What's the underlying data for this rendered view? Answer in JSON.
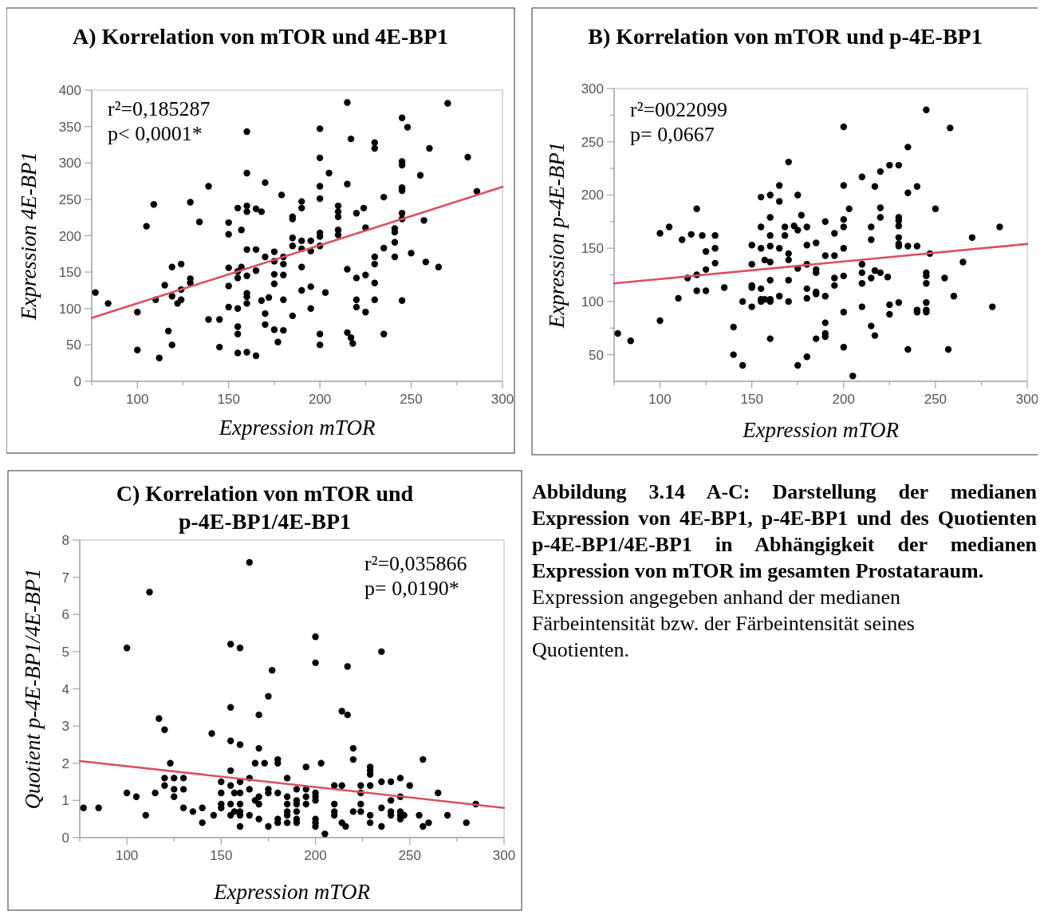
{
  "chart_data": [
    {
      "type": "scatter",
      "title": "A) Korrelation von mTOR und 4E-BP1",
      "xlabel": "Expression mTOR",
      "ylabel": "Expression 4E-BP1",
      "xlim": [
        75,
        300
      ],
      "xticks": [
        {
          "value": 75,
          "label": null
        },
        100,
        {
          "value": 125,
          "label": null
        },
        150,
        {
          "value": 175,
          "label": null
        },
        200,
        {
          "value": 225,
          "label": null
        },
        250,
        {
          "value": 275,
          "label": null
        },
        300
      ],
      "ylim": [
        0,
        400
      ],
      "yticks": [
        0,
        50,
        100,
        150,
        200,
        250,
        300,
        350,
        400
      ],
      "annotations": [
        "r²=0,185287",
        "p< 0,0001*"
      ],
      "series": [
        {
          "type": "scatter",
          "marker": "circle",
          "color": "#000000",
          "x": [
            77,
            84,
            100,
            100,
            105,
            109,
            110,
            112,
            115,
            117,
            119,
            119,
            119,
            122,
            124,
            124,
            124,
            129,
            129,
            129,
            134,
            139,
            139,
            145,
            145,
            150,
            150,
            150,
            150,
            150,
            155,
            155,
            155,
            157,
            155,
            155,
            155,
            155,
            157,
            160,
            160,
            160,
            160,
            160,
            160,
            160,
            160,
            160,
            160,
            165,
            165,
            165,
            168,
            168,
            170,
            170,
            170,
            170,
            165,
            172,
            175,
            175,
            175,
            175,
            175,
            177,
            179,
            190,
            190,
            185,
            185,
            185,
            185,
            190,
            190,
            195,
            195,
            200,
            200,
            200,
            200,
            200,
            200,
            200,
            205,
            210,
            210,
            210,
            210,
            210,
            215,
            217,
            215,
            220,
            224,
            225,
            230,
            230,
            235,
            241,
            241,
            241,
            235,
            245,
            248,
            245,
            245,
            245,
            245,
            245,
            245,
            260,
            255,
            257,
            270,
            281,
            286,
            250,
            258,
            265,
            241,
            230,
            230,
            230,
            230,
            225,
            220,
            215,
            220,
            220,
            225,
            235,
            215,
            217,
            218,
            245,
            203,
            200,
            200,
            195,
            195,
            190,
            190,
            185,
            180,
            180,
            180,
            180,
            180
          ],
          "values": [
            122,
            107,
            95,
            43,
            213,
            243,
            112,
            32,
            132,
            69,
            157,
            117,
            50,
            107,
            161,
            126,
            112,
            246,
            141,
            135,
            219,
            268,
            85,
            85,
            47,
            218,
            202,
            156,
            131,
            102,
            238,
            142,
            151,
            157,
            100,
            75,
            65,
            39,
            208,
            343,
            286,
            241,
            233,
            181,
            145,
            121,
            116,
            107,
            40,
            181,
            152,
            237,
            233,
            111,
            273,
            171,
            93,
            78,
            35,
            115,
            178,
            165,
            147,
            134,
            71,
            54,
            256,
            247,
            238,
            226,
            223,
            197,
            186,
            193,
            182,
            193,
            179,
            347,
            307,
            268,
            251,
            204,
            199,
            186,
            286,
            241,
            233,
            226,
            208,
            201,
            383,
            333,
            271,
            231,
            238,
            211,
            328,
            320,
            253,
            210,
            205,
            191,
            183,
            362,
            349,
            302,
            297,
            266,
            262,
            231,
            223,
            320,
            283,
            221,
            382,
            308,
            261,
            176,
            164,
            157,
            171,
            171,
            161,
            135,
            112,
            146,
            142,
            154,
            112,
            102,
            95,
            65,
            67,
            60,
            52,
            111,
            122,
            65,
            50,
            130,
            100,
            157,
            125,
            90,
            171,
            161,
            146,
            112,
            70
          ]
        },
        {
          "type": "line",
          "color": "#d9515f",
          "x": [
            75,
            300
          ],
          "values": [
            87,
            267
          ]
        }
      ]
    },
    {
      "type": "scatter",
      "title": "B) Korrelation von mTOR und p-4E-BP1",
      "xlabel": "Expression mTOR",
      "ylabel": "Expression p-4E-BP1",
      "xlim": [
        75,
        300
      ],
      "xticks": [
        {
          "value": 75,
          "label": null
        },
        100,
        {
          "value": 125,
          "label": null
        },
        150,
        {
          "value": 175,
          "label": null
        },
        200,
        {
          "value": 225,
          "label": null
        },
        250,
        {
          "value": 275,
          "label": null
        },
        300
      ],
      "ylim": [
        25,
        300
      ],
      "yticks": [
        50,
        {
          "value": 75,
          "label": null
        },
        100,
        {
          "value": 125,
          "label": null
        },
        150,
        {
          "value": 175,
          "label": null
        },
        200,
        {
          "value": 225,
          "label": null
        },
        250,
        {
          "value": 275,
          "label": null
        },
        300
      ],
      "annotations": [
        "r²=0022099",
        "p= 0,0667"
      ],
      "series": [
        {
          "type": "scatter",
          "marker": "circle",
          "color": "#000000",
          "x": [
            77,
            84,
            100,
            100,
            105,
            110,
            112,
            115,
            117,
            120,
            120,
            120,
            125,
            125,
            125,
            123,
            130,
            130,
            130,
            135,
            140,
            140,
            145,
            145,
            150,
            150,
            150,
            150,
            150,
            155,
            155,
            155,
            155,
            155,
            155,
            157,
            160,
            160,
            160,
            160,
            160,
            160,
            160,
            160,
            160,
            157,
            165,
            165,
            165,
            165,
            168,
            168,
            170,
            170,
            170,
            170,
            170,
            173,
            175,
            175,
            175,
            175,
            177,
            180,
            180,
            185,
            180,
            185,
            185,
            190,
            190,
            195,
            195,
            200,
            200,
            200,
            200,
            200,
            203,
            200,
            195,
            195,
            180,
            180,
            185,
            185,
            190,
            190,
            190,
            190,
            185,
            180,
            200,
            200,
            205,
            210,
            210,
            210,
            210,
            210,
            215,
            215,
            215,
            217,
            217,
            220,
            220,
            220,
            220,
            215,
            217,
            225,
            224,
            225,
            225,
            230,
            230,
            230,
            230,
            230,
            230,
            230,
            230,
            235,
            235,
            235,
            235,
            240,
            240,
            240,
            240,
            245,
            245,
            245,
            245,
            245,
            245,
            245,
            247,
            250,
            255,
            258,
            257,
            260,
            265,
            270,
            281,
            285
          ],
          "values": [
            70,
            63,
            164,
            82,
            170,
            103,
            158,
            122,
            163,
            187,
            125,
            110,
            130,
            147,
            110,
            162,
            162,
            150,
            136,
            113,
            76,
            50,
            40,
            100,
            153,
            135,
            115,
            113,
            95,
            198,
            170,
            150,
            112,
            102,
            100,
            139,
            200,
            179,
            162,
            152,
            137,
            120,
            102,
            100,
            65,
            102,
            209,
            194,
            150,
            105,
            170,
            162,
            231,
            145,
            139,
            120,
            100,
            171,
            200,
            167,
            131,
            40,
            181,
            170,
            153,
            155,
            135,
            130,
            127,
            175,
            143,
            164,
            143,
            264,
            209,
            177,
            170,
            150,
            187,
            124,
            122,
            115,
            112,
            103,
            109,
            107,
            105,
            80,
            70,
            67,
            65,
            48,
            90,
            57,
            30,
            217,
            135,
            127,
            117,
            95,
            170,
            158,
            122,
            208,
            129,
            127,
            222,
            188,
            179,
            77,
            68,
            228,
            123,
            97,
            88,
            228,
            179,
            176,
            171,
            160,
            154,
            152,
            99,
            245,
            202,
            152,
            55,
            208,
            152,
            92,
            90,
            280,
            127,
            124,
            117,
            99,
            92,
            90,
            145,
            187,
            122,
            263,
            55,
            105,
            137,
            160,
            95,
            170
          ]
        },
        {
          "type": "line",
          "color": "#d9515f",
          "x": [
            75,
            300
          ],
          "values": [
            117,
            154
          ]
        }
      ]
    },
    {
      "type": "scatter",
      "title": "C) Korrelation von mTOR und p-4E-BP1/4E-BP1",
      "xlabel": "Expression mTOR",
      "ylabel": "Quotient p-4E-BP1/4E-BP1",
      "xlim": [
        75,
        300
      ],
      "xticks": [
        {
          "value": 75,
          "label": null
        },
        100,
        {
          "value": 125,
          "label": null
        },
        150,
        {
          "value": 175,
          "label": null
        },
        200,
        {
          "value": 225,
          "label": null
        },
        250,
        {
          "value": 275,
          "label": null
        },
        300
      ],
      "ylim": [
        0,
        8
      ],
      "yticks": [
        0,
        1,
        2,
        3,
        4,
        5,
        6,
        7,
        8
      ],
      "annotations": [
        "r²=0,035866",
        "p= 0,0190*"
      ],
      "series": [
        {
          "type": "scatter",
          "marker": "circle",
          "color": "#000000",
          "x": [
            77,
            85,
            100,
            100,
            105,
            110,
            112,
            115,
            117,
            120,
            120,
            120,
            123,
            125,
            125,
            125,
            130,
            130,
            130,
            135,
            140,
            140,
            145,
            146,
            150,
            150,
            150,
            150,
            155,
            155,
            155,
            155,
            155,
            155,
            155,
            157,
            157,
            160,
            160,
            160,
            160,
            160,
            160,
            160,
            160,
            165,
            165,
            165,
            165,
            168,
            168,
            170,
            170,
            170,
            170,
            170,
            173,
            175,
            175,
            175,
            175,
            177,
            180,
            180,
            180,
            180,
            180,
            185,
            185,
            185,
            185,
            185,
            185,
            190,
            190,
            190,
            190,
            190,
            190,
            195,
            195,
            195,
            195,
            200,
            200,
            200,
            200,
            200,
            200,
            200,
            200,
            203,
            205,
            210,
            210,
            210,
            210,
            214,
            217,
            214,
            214,
            216,
            217,
            220,
            220,
            220,
            224,
            224,
            224,
            224,
            229,
            229,
            229,
            229,
            229,
            229,
            235,
            235,
            235,
            235,
            240,
            240,
            240,
            240,
            245,
            245,
            245,
            245,
            245,
            247,
            250,
            255,
            257,
            257,
            260,
            265,
            270,
            280,
            285
          ],
          "values": [
            0.8,
            0.8,
            5.1,
            1.2,
            1.1,
            0.6,
            6.6,
            1.2,
            3.2,
            2.9,
            1.6,
            1.4,
            2.0,
            1.6,
            1.3,
            1.1,
            1.6,
            1.3,
            0.8,
            0.7,
            0.8,
            0.4,
            2.8,
            0.6,
            1.5,
            1.2,
            0.9,
            0.8,
            5.2,
            3.5,
            2.6,
            1.8,
            1.4,
            0.9,
            0.6,
            1.2,
            0.7,
            5.1,
            2.5,
            1.5,
            1.2,
            0.9,
            0.7,
            0.6,
            0.3,
            7.4,
            1.6,
            1.3,
            0.6,
            2.0,
            1.0,
            3.3,
            2.4,
            1.1,
            0.9,
            0.5,
            2.0,
            3.8,
            1.3,
            1.2,
            0.3,
            4.5,
            2.1,
            2.0,
            1.2,
            0.5,
            0.4,
            1.6,
            1.1,
            0.9,
            0.7,
            0.4,
            0.6,
            1.3,
            1.0,
            0.9,
            0.7,
            0.5,
            0.4,
            1.9,
            1.3,
            1.1,
            0.9,
            5.4,
            4.7,
            1.2,
            1.1,
            1.0,
            0.5,
            0.4,
            0.3,
            2.0,
            0.1,
            1.4,
            0.9,
            0.7,
            0.6,
            3.4,
            3.3,
            1.4,
            0.4,
            0.3,
            4.6,
            2.4,
            2.1,
            0.7,
            1.4,
            1.2,
            0.9,
            0.7,
            1.9,
            1.8,
            1.7,
            1.4,
            0.6,
            0.4,
            5.0,
            1.5,
            0.8,
            0.3,
            1.5,
            1.0,
            0.7,
            0.6,
            1.6,
            1.1,
            0.7,
            0.6,
            0.5,
            0.6,
            1.4,
            0.6,
            0.3,
            2.1,
            0.4,
            1.2,
            0.6,
            0.4,
            0.9
          ]
        },
        {
          "type": "line",
          "color": "#d9515f",
          "x": [
            75,
            300
          ],
          "values": [
            2.06,
            0.8
          ]
        }
      ]
    },
    {
      "type": "other",
      "title": "Abbildung 3.14 A-C: Darstellung der medianen Expression von 4E-BP1, p-4E-BP1 und des Quotienten p-4E-BP1/4E-BP1 in Abhängigkeit der medianen Expression von mTOR im gesamten Prostataraum.",
      "annotations": [
        "Expression angegeben anhand der medianen Färbeintensität bzw. der Färbeintensität seines Quotienten."
      ]
    }
  ]
}
